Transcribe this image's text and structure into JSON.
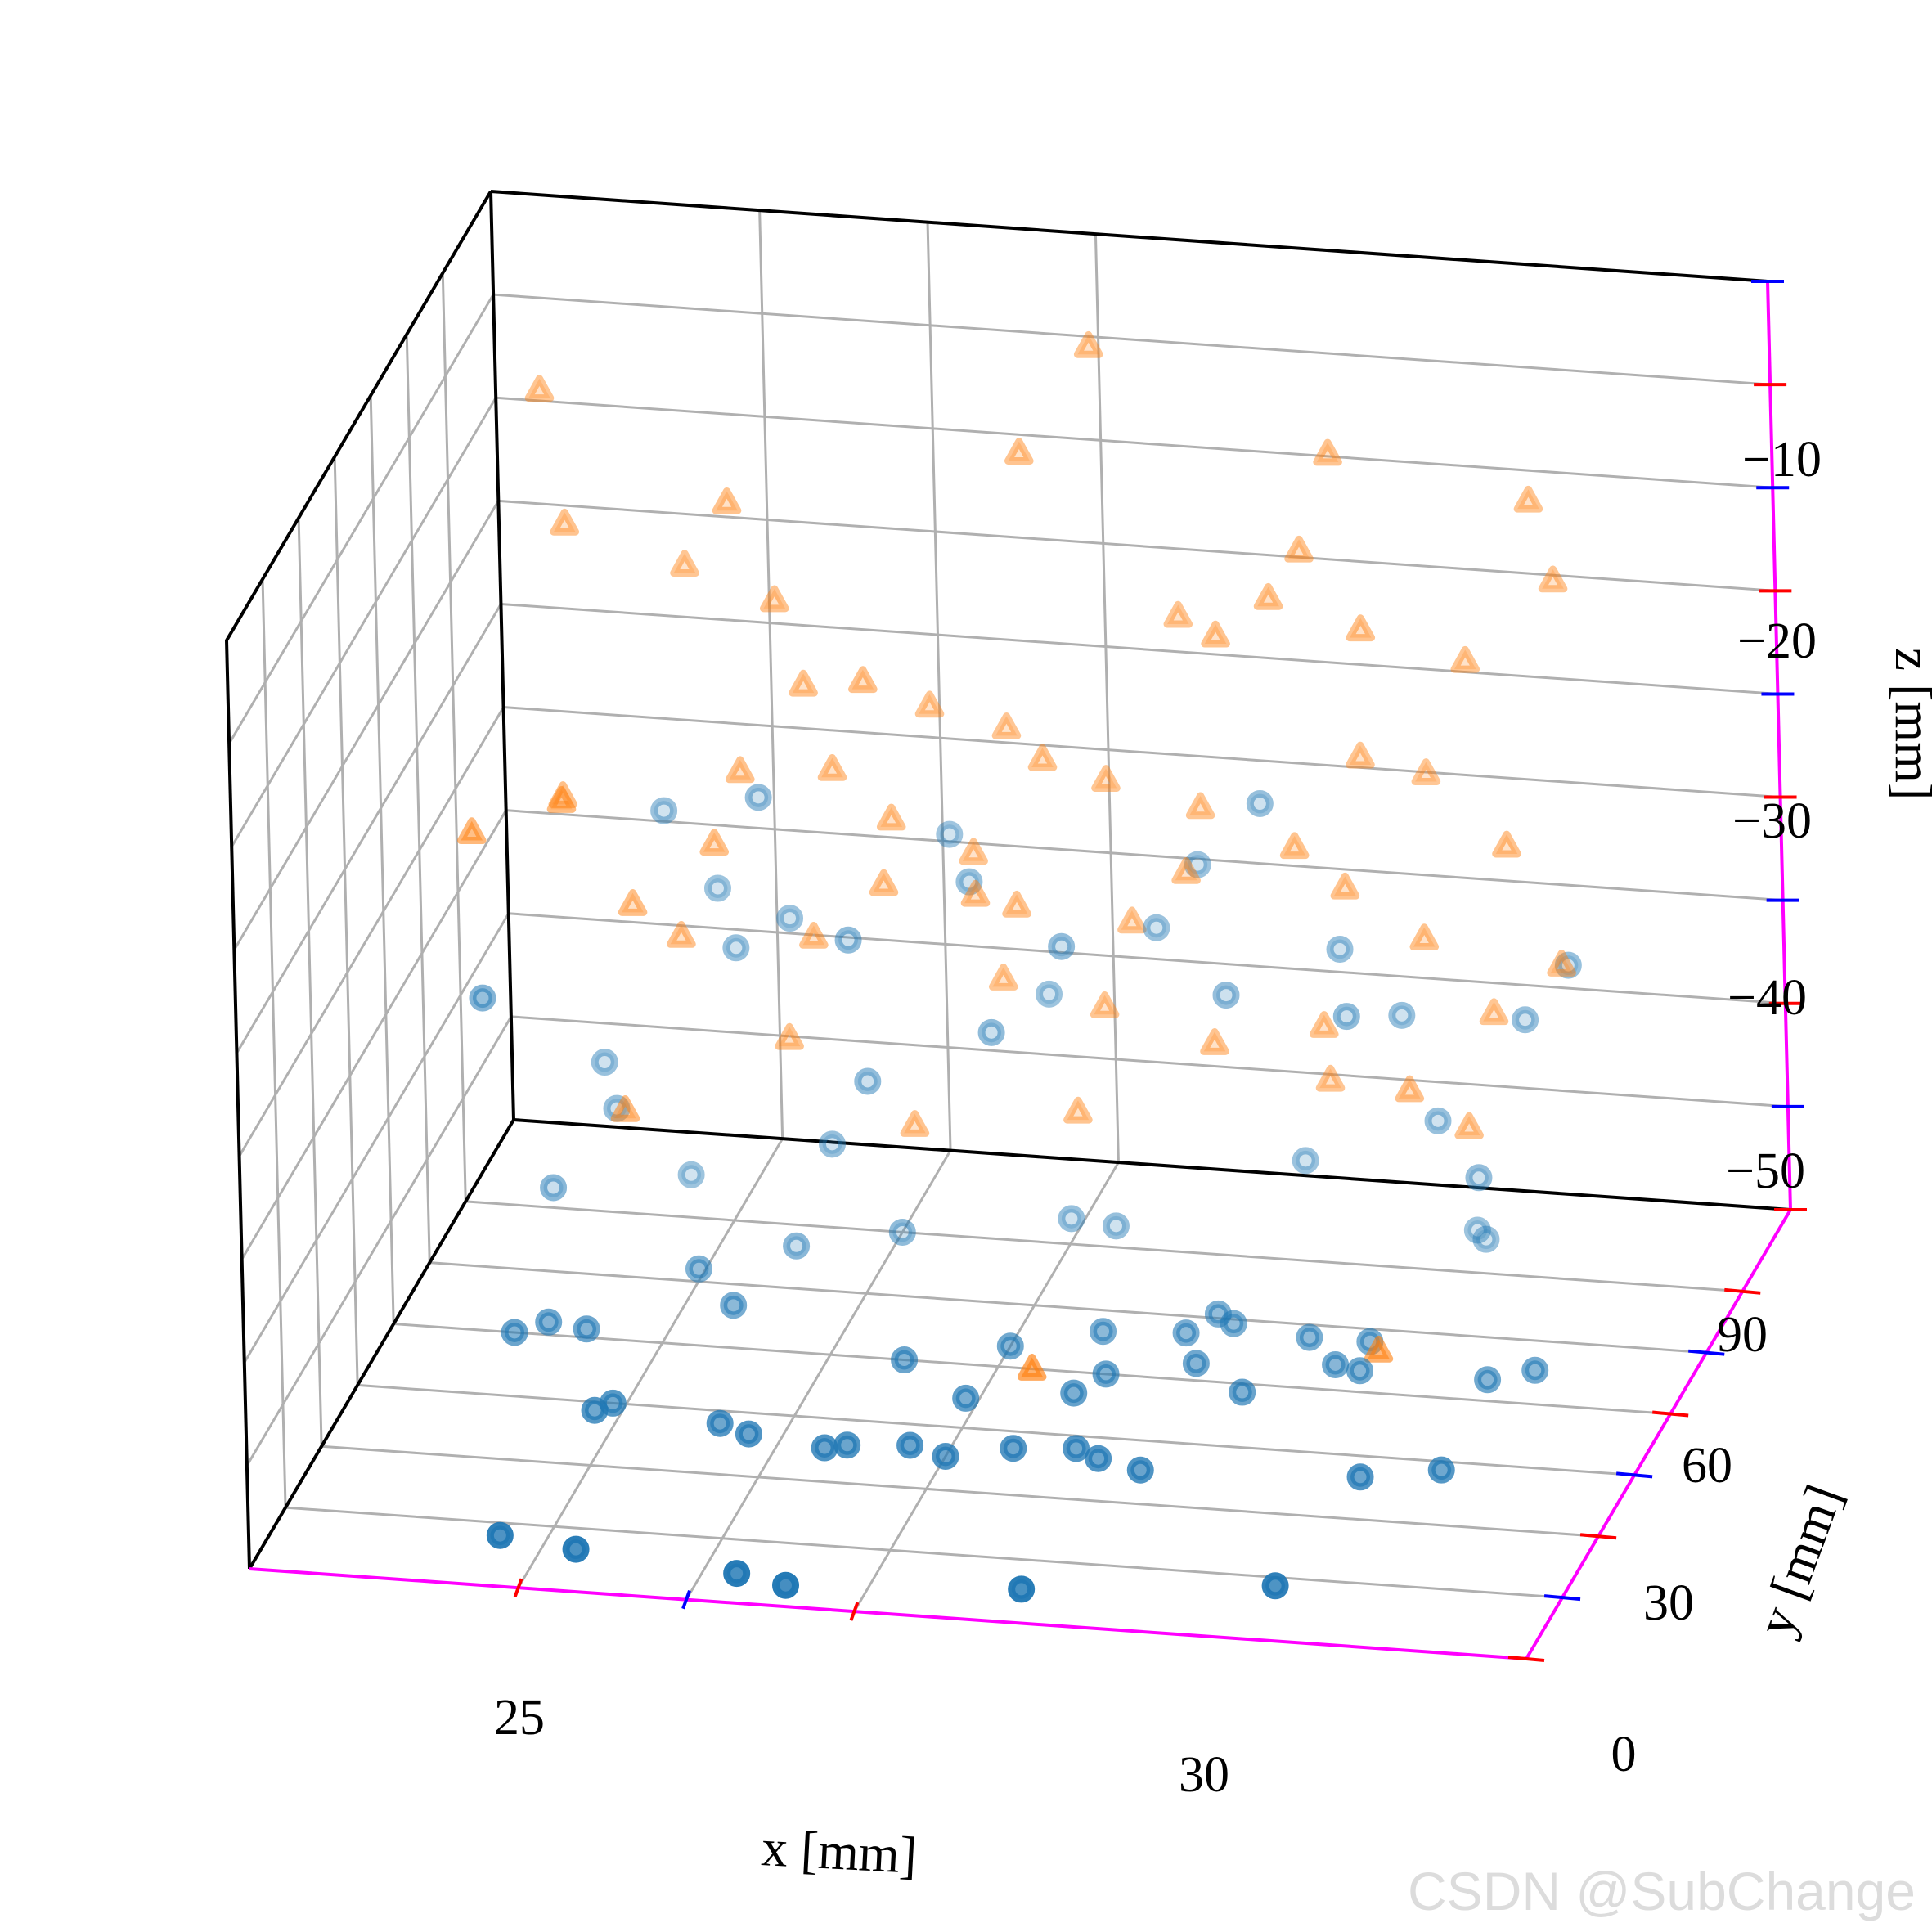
{
  "chart_data": {
    "type": "scatter",
    "projection": "3d",
    "xlabel": "x [mm]",
    "ylabel": "y [mm]",
    "zlabel": "z [mm]",
    "xlim": [
      21,
      40
    ],
    "ylim": [
      0,
      110
    ],
    "zlim": [
      -50,
      -5
    ],
    "grid": true,
    "axis_line_color": "#ff00ff",
    "major_tick_color": "#ff0000",
    "minor_tick_color": "#0000ff",
    "x_ticks": [
      25,
      30
    ],
    "x_minor_ticks": [
      27.5
    ],
    "y_ticks": [
      0,
      30,
      60,
      90
    ],
    "y_minor_ticks": [
      15,
      45,
      75
    ],
    "z_ticks": [
      -50,
      -40,
      -30,
      -20,
      -10
    ],
    "z_minor_ticks": [
      -45,
      -35,
      -25,
      -15,
      -5
    ],
    "x_tick_labels": [
      "25",
      "30"
    ],
    "y_tick_labels": [
      "0",
      "30",
      "60",
      "90"
    ],
    "z_tick_labels": [
      "−50",
      "−40",
      "−30",
      "−20",
      "−10"
    ],
    "watermark": "CSDN @SubChange",
    "series": [
      {
        "marker": "circle",
        "color": "#1f77b4",
        "points": [
          [
            24.3,
            12,
            -50
          ],
          [
            25.5,
            10,
            -50
          ],
          [
            28.0,
            7,
            -50
          ],
          [
            28.8,
            5,
            -50
          ],
          [
            32.2,
            8,
            -50
          ],
          [
            35.8,
            13,
            -50
          ],
          [
            24.6,
            43,
            -50
          ],
          [
            24.8,
            45,
            -50
          ],
          [
            26.5,
            42,
            -50
          ],
          [
            27.0,
            40,
            -50
          ],
          [
            28.2,
            38,
            -50
          ],
          [
            28.5,
            39,
            -50
          ],
          [
            29.4,
            40,
            -50
          ],
          [
            30.0,
            38,
            -50
          ],
          [
            30.9,
            41,
            -50
          ],
          [
            31.8,
            42,
            -50
          ],
          [
            32.2,
            40,
            -50
          ],
          [
            32.9,
            38,
            -50
          ],
          [
            36.1,
            40,
            -50
          ],
          [
            37.2,
            43,
            -50
          ],
          [
            22.8,
            60,
            -50
          ],
          [
            23.2,
            63,
            -50
          ],
          [
            23.8,
            62,
            -50
          ],
          [
            25.7,
            70,
            -50
          ],
          [
            24.9,
            78,
            -50
          ],
          [
            26.1,
            85,
            -50
          ],
          [
            29.8,
            52,
            -50
          ],
          [
            31.3,
            55,
            -50
          ],
          [
            31.6,
            60,
            -50
          ],
          [
            30.0,
            65,
            -50
          ],
          [
            31.2,
            70,
            -50
          ],
          [
            32.4,
            71,
            -50
          ],
          [
            33.0,
            74,
            -50
          ],
          [
            32.7,
            76,
            -50
          ],
          [
            34.2,
            72,
            -50
          ],
          [
            35.1,
            72,
            -50
          ],
          [
            32.8,
            64,
            -50
          ],
          [
            34.8,
            66,
            -50
          ],
          [
            37.1,
            65,
            -50
          ],
          [
            37.7,
            68,
            -50
          ],
          [
            33.7,
            58,
            -50
          ],
          [
            35.2,
            65,
            -50
          ],
          [
            28.6,
            60,
            -50
          ],
          [
            27.5,
            90,
            -50
          ],
          [
            30.5,
            95,
            -50
          ],
          [
            35.9,
            98,
            -50
          ],
          [
            24.0,
            100,
            -50
          ],
          [
            29.8,
            96,
            -50
          ],
          [
            21.7,
            80,
            -38
          ],
          [
            22.5,
            85,
            -48
          ],
          [
            23.1,
            95,
            -46
          ],
          [
            23.8,
            98,
            -32
          ],
          [
            24.5,
            100,
            -36
          ],
          [
            24.9,
            96,
            -38
          ],
          [
            25.6,
            99,
            -37
          ],
          [
            26.3,
            95,
            -47
          ],
          [
            26.8,
            90,
            -36
          ],
          [
            27.9,
            102,
            -33
          ],
          [
            28.4,
            96,
            -34
          ],
          [
            29.4,
            100,
            -40
          ],
          [
            29.9,
            92,
            -36
          ],
          [
            31.1,
            98,
            -36
          ],
          [
            31.7,
            99,
            -33
          ],
          [
            32.3,
            93,
            -38
          ],
          [
            32.8,
            95,
            -29
          ],
          [
            33.2,
            99,
            -47
          ],
          [
            33.9,
            96,
            -36
          ],
          [
            34.2,
            90,
            -38
          ],
          [
            34.8,
            96,
            -39
          ],
          [
            35.7,
            100,
            -50
          ],
          [
            35.3,
            96,
            -44
          ],
          [
            36.0,
            93,
            -46
          ],
          [
            36.6,
            97,
            -39
          ],
          [
            37.3,
            96,
            -36
          ],
          [
            22.9,
            96,
            -44
          ],
          [
            25.4,
            93,
            -30
          ],
          [
            27.0,
            91,
            -43
          ],
          [
            28.9,
            90,
            -40
          ]
        ]
      },
      {
        "marker": "triangle",
        "color": "#ff7f0e",
        "points": [
          [
            30.3,
            98,
            -8
          ],
          [
            29.3,
            96,
            -13
          ],
          [
            33.9,
            96,
            -12
          ],
          [
            36.8,
            98,
            -14
          ],
          [
            31.5,
            99,
            -21
          ],
          [
            34.4,
            94,
            -20
          ],
          [
            35.8,
            98,
            -22
          ],
          [
            37.1,
            99,
            -18
          ],
          [
            33.0,
            95,
            -19
          ],
          [
            33.4,
            97,
            -17
          ],
          [
            32.2,
            95,
            -21
          ],
          [
            26.0,
            96,
            -25
          ],
          [
            27.8,
            98,
            -26
          ],
          [
            29.5,
            97,
            -28
          ],
          [
            28.9,
            99,
            -27
          ],
          [
            30.4,
            98,
            -29
          ],
          [
            31.8,
            98,
            -30
          ],
          [
            33.3,
            95,
            -31
          ],
          [
            34.2,
            98,
            -27
          ],
          [
            35.1,
            100,
            -28
          ],
          [
            36.5,
            94,
            -30
          ],
          [
            27.2,
            94,
            -34
          ],
          [
            28.4,
            98,
            -33
          ],
          [
            30.7,
            99,
            -36
          ],
          [
            31.6,
            97,
            -33
          ],
          [
            34.0,
            96,
            -33
          ],
          [
            35.2,
            95,
            -35
          ],
          [
            26.1,
            95,
            -37
          ],
          [
            28.8,
            98,
            -39
          ],
          [
            30.3,
            98,
            -40
          ],
          [
            32.0,
            96,
            -41
          ],
          [
            33.6,
            97,
            -40
          ],
          [
            35.0,
            93,
            -42
          ],
          [
            22.1,
            98,
            -12
          ],
          [
            22.5,
            96,
            -18
          ],
          [
            22.6,
            90,
            -30
          ],
          [
            25.0,
            94,
            -16
          ],
          [
            25.6,
            96,
            -21
          ],
          [
            24.2,
            98,
            -20
          ],
          [
            27.0,
            93,
            -24
          ],
          [
            24.8,
            91,
            -32
          ],
          [
            25.1,
            94,
            -29
          ],
          [
            26.4,
            96,
            -29
          ],
          [
            27.3,
            95,
            -31
          ],
          [
            28.6,
            93,
            -34
          ],
          [
            29.1,
            96,
            -35
          ],
          [
            21.6,
            80,
            -30
          ],
          [
            22.8,
            84,
            -29
          ],
          [
            23.6,
            90,
            -35
          ],
          [
            24.2,
            93,
            -37
          ],
          [
            25.7,
            95,
            -42
          ],
          [
            27.5,
            96,
            -46
          ],
          [
            29.9,
            97,
            -45
          ],
          [
            33.6,
            99,
            -43
          ],
          [
            36.1,
            98,
            -39
          ],
          [
            35.8,
            95,
            -44
          ],
          [
            37.2,
            96,
            -36
          ],
          [
            30.5,
            60,
            -50
          ],
          [
            35.3,
            70,
            -50
          ],
          [
            23.6,
            85,
            -44
          ]
        ]
      }
    ]
  }
}
